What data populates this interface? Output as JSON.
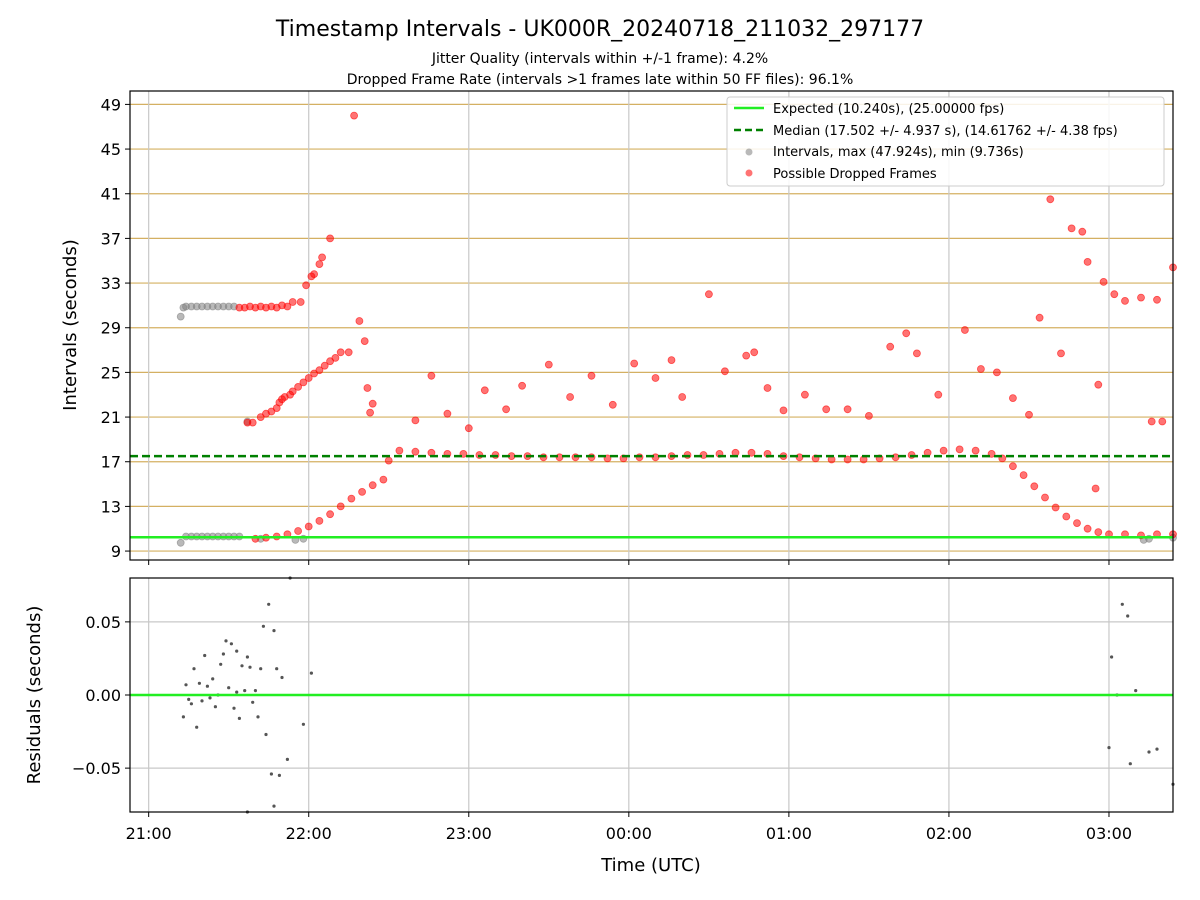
{
  "header": {
    "title": "Timestamp Intervals - UK000R_20240718_211032_297177",
    "subtitle_1": "Jitter Quality (intervals within +/-1 frame): 4.2%",
    "subtitle_2": "Dropped Frame Rate (intervals >1 frames late within 50 FF files): 96.1%"
  },
  "colors": {
    "expected": "#22ee22",
    "median": "#008000",
    "intervals": "#808080",
    "dropped": "#ff0000",
    "hgrid": "#d4b062",
    "vgrid": "#c8c8c8"
  },
  "chart_data": [
    {
      "type": "scatter",
      "panel": "intervals",
      "ylabel": "Intervals (seconds)",
      "xlabel": "",
      "x_axis": "time (UTC), 2024-07-18 20:53 to 2024-07-19 03:24",
      "xlim": [
        "2024-07-18 20:53",
        "2024-07-19 03:24"
      ],
      "ylim": [
        8.2,
        50.2
      ],
      "y_ticks": [
        "9",
        "13",
        "17",
        "21",
        "25",
        "29",
        "33",
        "37",
        "41",
        "45",
        "49"
      ],
      "grid": true,
      "legend_position": "top-right",
      "legend": [
        "Expected (10.240s), (25.00000 fps)",
        "Median (17.502 +/- 4.937 s), (14.61762 +/- 4.38 fps)",
        "Intervals, max (47.924s), min (9.736s)",
        "Possible Dropped Frames"
      ],
      "expected_line": 10.24,
      "median_line": 17.502,
      "series": [
        {
          "name": "Intervals, max (47.924s), min (9.736s)",
          "points": [
            [
              "21:12",
              30.0
            ],
            [
              "21:13",
              30.8
            ],
            [
              "21:14",
              30.9
            ],
            [
              "21:16",
              30.9
            ],
            [
              "21:18",
              30.9
            ],
            [
              "21:20",
              30.9
            ],
            [
              "21:22",
              30.9
            ],
            [
              "21:24",
              30.9
            ],
            [
              "21:26",
              30.9
            ],
            [
              "21:28",
              30.9
            ],
            [
              "21:30",
              30.9
            ],
            [
              "21:32",
              30.9
            ],
            [
              "21:12",
              9.74
            ],
            [
              "21:14",
              10.3
            ],
            [
              "21:16",
              10.3
            ],
            [
              "21:18",
              10.3
            ],
            [
              "21:20",
              10.3
            ],
            [
              "21:22",
              10.3
            ],
            [
              "21:24",
              10.3
            ],
            [
              "21:26",
              10.3
            ],
            [
              "21:28",
              10.3
            ],
            [
              "21:30",
              10.3
            ],
            [
              "21:32",
              10.3
            ],
            [
              "21:34",
              10.3
            ],
            [
              "21:37",
              20.6
            ],
            [
              "21:42",
              10.1
            ],
            [
              "21:55",
              10.0
            ],
            [
              "21:58",
              10.1
            ],
            [
              "03:13",
              10.0
            ],
            [
              "03:15",
              10.1
            ],
            [
              "03:24",
              10.2
            ]
          ]
        },
        {
          "name": "Possible Dropped Frames",
          "points": [
            [
              "21:34",
              30.8
            ],
            [
              "21:36",
              30.8
            ],
            [
              "21:38",
              30.9
            ],
            [
              "21:40",
              30.8
            ],
            [
              "21:42",
              30.9
            ],
            [
              "21:44",
              30.8
            ],
            [
              "21:46",
              30.9
            ],
            [
              "21:48",
              30.8
            ],
            [
              "21:50",
              31.0
            ],
            [
              "21:52",
              30.9
            ],
            [
              "21:54",
              31.3
            ],
            [
              "21:57",
              31.3
            ],
            [
              "21:59",
              32.8
            ],
            [
              "22:01",
              33.6
            ],
            [
              "22:02",
              33.8
            ],
            [
              "22:04",
              34.7
            ],
            [
              "22:05",
              35.3
            ],
            [
              "22:08",
              37.0
            ],
            [
              "21:37",
              20.5
            ],
            [
              "21:39",
              20.5
            ],
            [
              "21:42",
              21.0
            ],
            [
              "21:44",
              21.3
            ],
            [
              "21:46",
              21.5
            ],
            [
              "21:48",
              21.8
            ],
            [
              "21:49",
              22.3
            ],
            [
              "21:50",
              22.6
            ],
            [
              "21:51",
              22.8
            ],
            [
              "21:53",
              23.0
            ],
            [
              "21:54",
              23.3
            ],
            [
              "21:56",
              23.7
            ],
            [
              "21:58",
              24.1
            ],
            [
              "22:00",
              24.5
            ],
            [
              "22:02",
              24.9
            ],
            [
              "22:04",
              25.2
            ],
            [
              "22:06",
              25.6
            ],
            [
              "22:08",
              26.0
            ],
            [
              "22:10",
              26.3
            ],
            [
              "22:12",
              26.8
            ],
            [
              "22:15",
              26.8
            ],
            [
              "22:17",
              48.0
            ],
            [
              "22:19",
              29.6
            ],
            [
              "22:21",
              27.8
            ],
            [
              "22:22",
              23.6
            ],
            [
              "22:23",
              21.4
            ],
            [
              "22:24",
              22.2
            ],
            [
              "21:40",
              10.1
            ],
            [
              "21:44",
              10.2
            ],
            [
              "21:48",
              10.3
            ],
            [
              "21:52",
              10.5
            ],
            [
              "21:56",
              10.8
            ],
            [
              "22:00",
              11.2
            ],
            [
              "22:04",
              11.7
            ],
            [
              "22:08",
              12.3
            ],
            [
              "22:12",
              13.0
            ],
            [
              "22:16",
              13.7
            ],
            [
              "22:20",
              14.3
            ],
            [
              "22:24",
              14.9
            ],
            [
              "22:28",
              15.4
            ],
            [
              "22:30",
              17.1
            ],
            [
              "22:34",
              18.0
            ],
            [
              "22:40",
              17.9
            ],
            [
              "22:46",
              17.8
            ],
            [
              "22:52",
              17.7
            ],
            [
              "22:58",
              17.7
            ],
            [
              "23:04",
              17.6
            ],
            [
              "23:10",
              17.6
            ],
            [
              "23:16",
              17.5
            ],
            [
              "23:22",
              17.5
            ],
            [
              "23:28",
              17.4
            ],
            [
              "23:34",
              17.4
            ],
            [
              "23:40",
              17.4
            ],
            [
              "23:46",
              17.4
            ],
            [
              "23:52",
              17.3
            ],
            [
              "23:58",
              17.3
            ],
            [
              "00:04",
              17.4
            ],
            [
              "00:10",
              17.4
            ],
            [
              "00:16",
              17.5
            ],
            [
              "00:22",
              17.6
            ],
            [
              "00:28",
              17.6
            ],
            [
              "00:34",
              17.7
            ],
            [
              "00:40",
              17.8
            ],
            [
              "00:46",
              17.8
            ],
            [
              "00:52",
              17.7
            ],
            [
              "00:58",
              17.5
            ],
            [
              "01:04",
              17.4
            ],
            [
              "01:10",
              17.3
            ],
            [
              "01:16",
              17.2
            ],
            [
              "01:22",
              17.2
            ],
            [
              "01:28",
              17.2
            ],
            [
              "01:34",
              17.3
            ],
            [
              "01:40",
              17.4
            ],
            [
              "01:46",
              17.6
            ],
            [
              "01:52",
              17.8
            ],
            [
              "01:58",
              18.0
            ],
            [
              "02:04",
              18.1
            ],
            [
              "02:10",
              18.0
            ],
            [
              "02:16",
              17.7
            ],
            [
              "02:20",
              17.3
            ],
            [
              "02:24",
              16.6
            ],
            [
              "02:28",
              15.8
            ],
            [
              "02:32",
              14.8
            ],
            [
              "02:36",
              13.8
            ],
            [
              "02:40",
              12.9
            ],
            [
              "02:44",
              12.1
            ],
            [
              "02:48",
              11.5
            ],
            [
              "02:52",
              11.0
            ],
            [
              "02:56",
              10.7
            ],
            [
              "03:00",
              10.5
            ],
            [
              "03:06",
              10.5
            ],
            [
              "03:12",
              10.4
            ],
            [
              "03:18",
              10.5
            ],
            [
              "03:24",
              10.5
            ],
            [
              "22:40",
              20.7
            ],
            [
              "22:46",
              24.7
            ],
            [
              "22:52",
              21.3
            ],
            [
              "23:00",
              20.0
            ],
            [
              "23:06",
              23.4
            ],
            [
              "23:14",
              21.7
            ],
            [
              "23:20",
              23.8
            ],
            [
              "23:30",
              25.7
            ],
            [
              "23:38",
              22.8
            ],
            [
              "23:46",
              24.7
            ],
            [
              "23:54",
              22.1
            ],
            [
              "00:02",
              25.8
            ],
            [
              "00:10",
              24.5
            ],
            [
              "00:16",
              26.1
            ],
            [
              "00:20",
              22.8
            ],
            [
              "00:30",
              32.0
            ],
            [
              "00:36",
              25.1
            ],
            [
              "00:44",
              26.5
            ],
            [
              "00:47",
              26.8
            ],
            [
              "00:52",
              23.6
            ],
            [
              "00:58",
              21.6
            ],
            [
              "01:06",
              23.0
            ],
            [
              "01:14",
              21.7
            ],
            [
              "01:22",
              21.7
            ],
            [
              "01:30",
              21.1
            ],
            [
              "01:38",
              27.3
            ],
            [
              "01:44",
              28.5
            ],
            [
              "01:48",
              26.7
            ],
            [
              "01:56",
              23.0
            ],
            [
              "02:06",
              28.8
            ],
            [
              "02:12",
              25.3
            ],
            [
              "02:18",
              25.0
            ],
            [
              "02:24",
              22.7
            ],
            [
              "02:30",
              21.2
            ],
            [
              "02:34",
              29.9
            ],
            [
              "02:38",
              40.5
            ],
            [
              "02:42",
              26.7
            ],
            [
              "02:46",
              37.9
            ],
            [
              "02:50",
              37.6
            ],
            [
              "02:52",
              34.9
            ],
            [
              "02:56",
              23.9
            ],
            [
              "02:58",
              33.1
            ],
            [
              "03:02",
              32.0
            ],
            [
              "03:06",
              31.4
            ],
            [
              "03:12",
              31.7
            ],
            [
              "03:18",
              31.5
            ],
            [
              "03:24",
              34.4
            ],
            [
              "03:16",
              20.6
            ],
            [
              "03:20",
              20.6
            ],
            [
              "02:55",
              14.6
            ]
          ]
        }
      ]
    },
    {
      "type": "scatter",
      "panel": "residuals",
      "ylabel": "Residuals (seconds)",
      "xlabel": "Time (UTC)",
      "xlim": [
        "2024-07-18 20:53",
        "2024-07-19 03:24"
      ],
      "ylim": [
        -0.08,
        0.08
      ],
      "x_ticks": [
        "21:00",
        "22:00",
        "23:00",
        "00:00",
        "01:00",
        "02:00",
        "03:00"
      ],
      "y_ticks": [
        "0.05",
        "0.00",
        "−0.05"
      ],
      "grid": true,
      "zero_line": 0.0,
      "series": [
        {
          "name": "",
          "points": [
            [
              "21:13",
              -0.015
            ],
            [
              "21:14",
              0.007
            ],
            [
              "21:15",
              -0.003
            ],
            [
              "21:16",
              -0.006
            ],
            [
              "21:17",
              0.018
            ],
            [
              "21:18",
              -0.022
            ],
            [
              "21:19",
              0.008
            ],
            [
              "21:20",
              -0.004
            ],
            [
              "21:21",
              0.027
            ],
            [
              "21:22",
              0.006
            ],
            [
              "21:23",
              -0.002
            ],
            [
              "21:24",
              0.011
            ],
            [
              "21:25",
              -0.008
            ],
            [
              "21:26",
              0.0
            ],
            [
              "21:27",
              0.021
            ],
            [
              "21:28",
              0.028
            ],
            [
              "21:29",
              0.037
            ],
            [
              "21:30",
              0.005
            ],
            [
              "21:31",
              0.035
            ],
            [
              "21:32",
              -0.009
            ],
            [
              "21:33",
              0.002
            ],
            [
              "21:34",
              -0.016
            ],
            [
              "21:35",
              0.02
            ],
            [
              "21:36",
              0.003
            ],
            [
              "21:37",
              0.026
            ],
            [
              "21:38",
              0.019
            ],
            [
              "21:39",
              -0.005
            ],
            [
              "21:40",
              0.003
            ],
            [
              "21:41",
              -0.015
            ],
            [
              "21:42",
              0.018
            ],
            [
              "21:43",
              0.047
            ],
            [
              "21:44",
              -0.027
            ],
            [
              "21:45",
              0.062
            ],
            [
              "21:46",
              -0.054
            ],
            [
              "21:47",
              0.044
            ],
            [
              "21:47",
              -0.076
            ],
            [
              "21:48",
              0.018
            ],
            [
              "21:49",
              -0.055
            ],
            [
              "21:50",
              0.012
            ],
            [
              "21:52",
              -0.044
            ],
            [
              "21:58",
              -0.02
            ],
            [
              "22:01",
              0.015
            ],
            [
              "21:53",
              0.08
            ],
            [
              "21:37",
              -0.08
            ],
            [
              "21:33",
              0.03
            ],
            [
              "03:00",
              -0.036
            ],
            [
              "03:01",
              0.026
            ],
            [
              "03:03",
              0.0
            ],
            [
              "03:05",
              0.062
            ],
            [
              "03:07",
              0.054
            ],
            [
              "03:08",
              -0.047
            ],
            [
              "03:10",
              0.003
            ],
            [
              "03:15",
              -0.039
            ],
            [
              "03:18",
              -0.037
            ],
            [
              "03:24",
              -0.061
            ]
          ]
        }
      ]
    }
  ]
}
